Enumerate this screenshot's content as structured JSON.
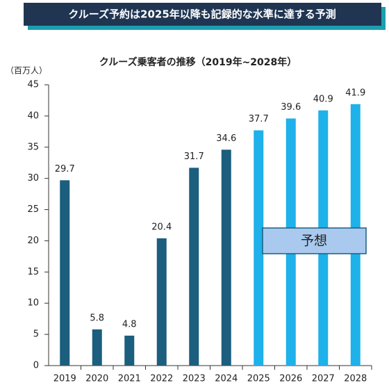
{
  "header": "クルーズ予約は2025年以降も記録的な水準に達する予測",
  "chart_data": {
    "type": "bar",
    "title": "クルーズ乗客者の推移（2019年~2028年）",
    "y_unit": "（百万人）",
    "annotation": "予想",
    "categories": [
      "2019",
      "2020",
      "2021",
      "2022",
      "2023",
      "2024",
      "2025",
      "2026",
      "2027",
      "2028"
    ],
    "values": [
      29.7,
      5.8,
      4.8,
      20.4,
      31.7,
      34.6,
      37.7,
      39.6,
      40.9,
      41.9
    ],
    "colors": [
      "#1b5e7e",
      "#1b5e7e",
      "#1b5e7e",
      "#1b5e7e",
      "#1b5e7e",
      "#1b5e7e",
      "#1eb1ea",
      "#1eb1ea",
      "#1eb1ea",
      "#1eb1ea"
    ],
    "ylim": [
      0,
      45
    ],
    "yticks": [
      0,
      5,
      10,
      15,
      20,
      25,
      30,
      35,
      40,
      45
    ],
    "grid": false
  }
}
